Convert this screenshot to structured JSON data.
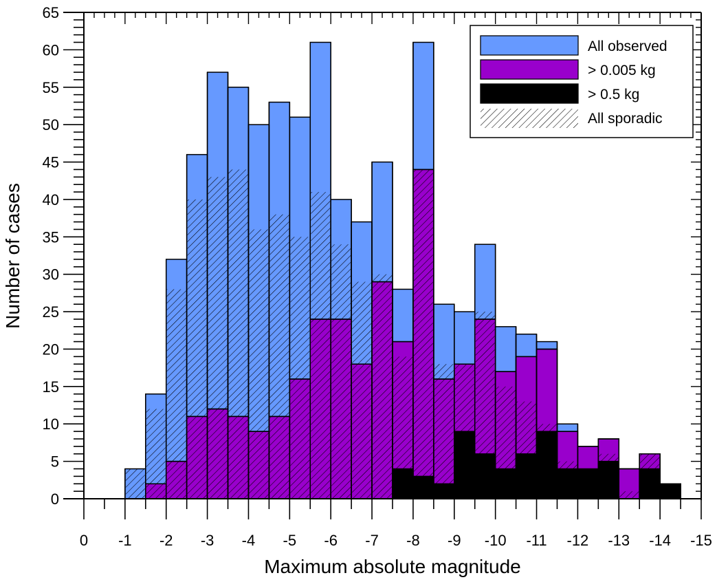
{
  "chart_data": {
    "type": "bar",
    "title": "",
    "xlabel": "Maximum absolute magnitude",
    "ylabel": "Number of cases",
    "xlim": [
      0,
      -15
    ],
    "ylim": [
      0,
      65
    ],
    "x_ticks": [
      "0",
      "-1",
      "-2",
      "-3",
      "-4",
      "-5",
      "-6",
      "-7",
      "-8",
      "-9",
      "-10",
      "-11",
      "-12",
      "-13",
      "-14",
      "-15"
    ],
    "y_ticks": [
      "0",
      "5",
      "10",
      "15",
      "20",
      "25",
      "30",
      "35",
      "40",
      "45",
      "50",
      "55",
      "60",
      "65"
    ],
    "grid": false,
    "legend_position": "top-right",
    "bin_width": 0.5,
    "bin_starts": [
      -1,
      -1.5,
      -2,
      -2.5,
      -3,
      -3.5,
      -4,
      -4.5,
      -5,
      -5.5,
      -6,
      -6.5,
      -7,
      -7.5,
      -8,
      -8.5,
      -9,
      -9.5,
      -10,
      -10.5,
      -11,
      -11.5,
      -12,
      -12.5,
      -13,
      -13.5,
      -14
    ],
    "series": [
      {
        "name": "All observed",
        "color": "#6699FF",
        "style": "fill",
        "values": [
          4,
          14,
          32,
          46,
          57,
          55,
          50,
          53,
          51,
          61,
          40,
          37,
          45,
          28,
          61,
          26,
          25,
          34,
          23,
          22,
          21,
          10,
          7,
          8,
          4,
          6,
          2
        ]
      },
      {
        "name": "> 0.005 kg",
        "color": "#9900CC",
        "style": "fill",
        "values": [
          0,
          2,
          5,
          11,
          12,
          11,
          9,
          11,
          16,
          24,
          24,
          18,
          29,
          21,
          44,
          16,
          18,
          24,
          17,
          19,
          20,
          9,
          7,
          8,
          4,
          6,
          2
        ]
      },
      {
        "name": "> 0.5 kg",
        "color": "#000000",
        "style": "fill",
        "values": [
          0,
          0,
          0,
          0,
          0,
          0,
          0,
          0,
          0,
          0,
          0,
          0,
          0,
          4,
          3,
          2,
          9,
          6,
          4,
          6,
          9,
          4,
          4,
          5,
          0,
          4,
          2
        ]
      },
      {
        "name": "All sporadic",
        "color": "#000000",
        "style": "hatch",
        "values": [
          4,
          12,
          28,
          40,
          43,
          44,
          36,
          38,
          35,
          41,
          34,
          29,
          30,
          19,
          44,
          18,
          18,
          25,
          15,
          13,
          10,
          5,
          0,
          6,
          1,
          6,
          0
        ]
      }
    ]
  }
}
